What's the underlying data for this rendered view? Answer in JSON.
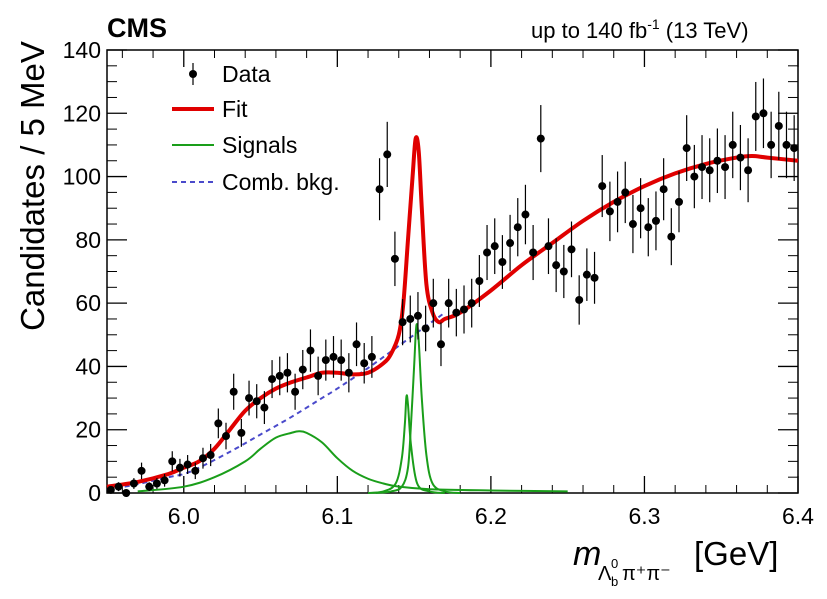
{
  "header": {
    "experiment": "CMS",
    "lumi_prefix": "up to 140 fb",
    "lumi_sup": "-1",
    "lumi_suffix": " (13 TeV)"
  },
  "chart_data": {
    "type": "scatter",
    "ylabel": "Candidates / 5 MeV",
    "xlabel": {
      "m": "m",
      "sub_lambda": "Λ",
      "sub_b": "b",
      "sup_zero": "0",
      "pi_part": "π⁺π⁻",
      "unit": "[GeV]"
    },
    "xlim": [
      5.95,
      6.4
    ],
    "ylim": [
      0,
      140
    ],
    "xticks": [
      6.0,
      6.1,
      6.2,
      6.3,
      6.4
    ],
    "xtick_labels": [
      "6.0",
      "6.1",
      "6.2",
      "6.3",
      "6.4"
    ],
    "yticks": [
      0,
      20,
      40,
      60,
      80,
      100,
      120,
      140
    ],
    "ytick_labels": [
      "0",
      "20",
      "40",
      "60",
      "80",
      "100",
      "120",
      "140"
    ],
    "legend": {
      "placement": "top-left",
      "entries": [
        {
          "label": "Data",
          "style": "marker",
          "color": "#000000"
        },
        {
          "label": "Fit",
          "style": "solid",
          "color": "#e00000"
        },
        {
          "label": "Signals",
          "style": "solid",
          "color": "#1a9e1a"
        },
        {
          "label": "Comb. bkg.",
          "style": "dashed",
          "color": "#4a4acb"
        }
      ]
    },
    "series": [
      {
        "name": "Data",
        "kind": "points",
        "color": "#000000",
        "x": [
          5.9525,
          5.9575,
          5.9625,
          5.9675,
          5.9725,
          5.9775,
          5.9825,
          5.9875,
          5.9925,
          5.9975,
          6.0025,
          6.0075,
          6.0125,
          6.0175,
          6.0225,
          6.0275,
          6.0325,
          6.0375,
          6.0425,
          6.0475,
          6.0525,
          6.0575,
          6.0625,
          6.0675,
          6.0725,
          6.0775,
          6.0825,
          6.0875,
          6.0925,
          6.0975,
          6.1025,
          6.1075,
          6.1125,
          6.1175,
          6.1225,
          6.1275,
          6.1325,
          6.1375,
          6.1425,
          6.1475,
          6.1525,
          6.1575,
          6.1625,
          6.1675,
          6.1725,
          6.1775,
          6.1825,
          6.1875,
          6.1925,
          6.1975,
          6.2025,
          6.2075,
          6.2125,
          6.2175,
          6.2225,
          6.2275,
          6.2325,
          6.2375,
          6.2425,
          6.2475,
          6.2525,
          6.2575,
          6.2625,
          6.2675,
          6.2725,
          6.2775,
          6.2825,
          6.2875,
          6.2925,
          6.2975,
          6.3025,
          6.3075,
          6.3125,
          6.3175,
          6.3225,
          6.3275,
          6.3325,
          6.3375,
          6.3425,
          6.3475,
          6.3525,
          6.3575,
          6.3625,
          6.3675,
          6.3725,
          6.3775,
          6.3825,
          6.3875,
          6.3925,
          6.3975
        ],
        "y": [
          1,
          2,
          0,
          3,
          7,
          2,
          3,
          4,
          10,
          8,
          9,
          7,
          11,
          12,
          22,
          18,
          32,
          19,
          30,
          29,
          27,
          36,
          37,
          38,
          32,
          39,
          45,
          37,
          42,
          43,
          42,
          38,
          47,
          41,
          43,
          96,
          107,
          74,
          54,
          55,
          56,
          52,
          60,
          47,
          60,
          57,
          58,
          60,
          67,
          76,
          78,
          73,
          79,
          84,
          88,
          76,
          112,
          78,
          72,
          70,
          77,
          61,
          69,
          68,
          97,
          89,
          92,
          95,
          85,
          90,
          84,
          86,
          96,
          81,
          92,
          109,
          100,
          103,
          102,
          105,
          103,
          110,
          106,
          102,
          119,
          120,
          110,
          116,
          110,
          109
        ],
        "yerr": [
          1,
          1.4,
          1,
          1.7,
          2.6,
          1.4,
          1.7,
          2,
          3.2,
          2.8,
          3,
          2.6,
          3.3,
          3.5,
          4.7,
          4.2,
          5.7,
          4.4,
          5.5,
          5.4,
          5.2,
          6,
          6.1,
          6.2,
          5.7,
          6.2,
          6.7,
          6.1,
          6.5,
          6.6,
          6.5,
          6.2,
          6.9,
          6.4,
          6.6,
          9.8,
          10.3,
          8.6,
          7.3,
          7.4,
          7.5,
          7.2,
          7.7,
          6.9,
          7.7,
          7.5,
          7.6,
          7.7,
          8.2,
          8.7,
          8.8,
          8.5,
          8.9,
          9.2,
          9.4,
          8.7,
          10.6,
          8.8,
          8.5,
          8.4,
          8.8,
          7.8,
          8.3,
          8.2,
          9.8,
          9.4,
          9.6,
          9.7,
          9.2,
          9.5,
          9.2,
          9.3,
          9.8,
          9,
          9.6,
          10.4,
          10,
          10.1,
          10.1,
          10.2,
          10.1,
          10.5,
          10.3,
          10.1,
          10.9,
          11,
          10.5,
          10.8,
          10.5,
          10.4
        ]
      },
      {
        "name": "Fit",
        "kind": "line",
        "color": "#e00000",
        "x": [
          5.95,
          5.97,
          5.99,
          6.0,
          6.01,
          6.02,
          6.03,
          6.04,
          6.05,
          6.06,
          6.07,
          6.08,
          6.09,
          6.1,
          6.11,
          6.12,
          6.13,
          6.135,
          6.14,
          6.143,
          6.146,
          6.149,
          6.151,
          6.153,
          6.155,
          6.158,
          6.162,
          6.166,
          6.17,
          6.18,
          6.2,
          6.22,
          6.24,
          6.26,
          6.28,
          6.3,
          6.32,
          6.34,
          6.36,
          6.37,
          6.38,
          6.4
        ],
        "y": [
          2,
          3.5,
          6,
          8,
          10,
          14,
          20,
          26,
          30,
          33,
          35,
          36.5,
          38,
          38,
          37.5,
          38,
          41,
          44,
          50,
          60,
          80,
          100,
          112,
          108,
          90,
          66,
          57,
          54,
          55,
          57,
          64,
          72,
          79,
          86,
          92,
          97,
          101,
          104,
          106,
          106.5,
          106,
          105
        ]
      },
      {
        "name": "Signals",
        "kind": "line",
        "color": "#1a9e1a",
        "x": [
          5.97,
          6.0,
          6.02,
          6.04,
          6.05,
          6.06,
          6.07,
          6.075,
          6.08,
          6.09,
          6.1,
          6.11,
          6.12,
          6.13,
          6.14,
          6.16,
          6.2,
          6.25
        ],
        "y": [
          0.5,
          2,
          5,
          10,
          14,
          17.5,
          19,
          19.5,
          19,
          16,
          11,
          7,
          4.5,
          3,
          2,
          1.2,
          0.8,
          0.5
        ]
      },
      {
        "name": "Signals",
        "kind": "line",
        "color": "#1a9e1a",
        "x": [
          6.12,
          6.13,
          6.138,
          6.142,
          6.144,
          6.145,
          6.146,
          6.148,
          6.152,
          6.16,
          6.17
        ],
        "y": [
          0,
          0.5,
          3,
          11,
          22,
          30.5,
          28,
          15,
          3,
          0.5,
          0
        ]
      },
      {
        "name": "Signals",
        "kind": "line",
        "color": "#1a9e1a",
        "x": [
          6.125,
          6.135,
          6.142,
          6.146,
          6.148,
          6.15,
          6.1515,
          6.153,
          6.155,
          6.158,
          6.162,
          6.17,
          6.18
        ],
        "y": [
          0,
          0.5,
          2,
          8,
          22,
          40,
          53,
          48,
          30,
          12,
          3,
          0.5,
          0
        ]
      },
      {
        "name": "Comb. bkg.",
        "kind": "line",
        "color": "#4a4acb",
        "x": [
          5.95,
          5.97,
          5.99,
          6.0,
          6.01,
          6.03,
          6.05,
          6.07,
          6.09,
          6.1,
          6.12,
          6.14,
          6.16,
          6.17
        ],
        "y": [
          1,
          2.8,
          5,
          6,
          8,
          13,
          18.5,
          24,
          30,
          33,
          39.5,
          46.5,
          53.5,
          57
        ]
      }
    ]
  }
}
